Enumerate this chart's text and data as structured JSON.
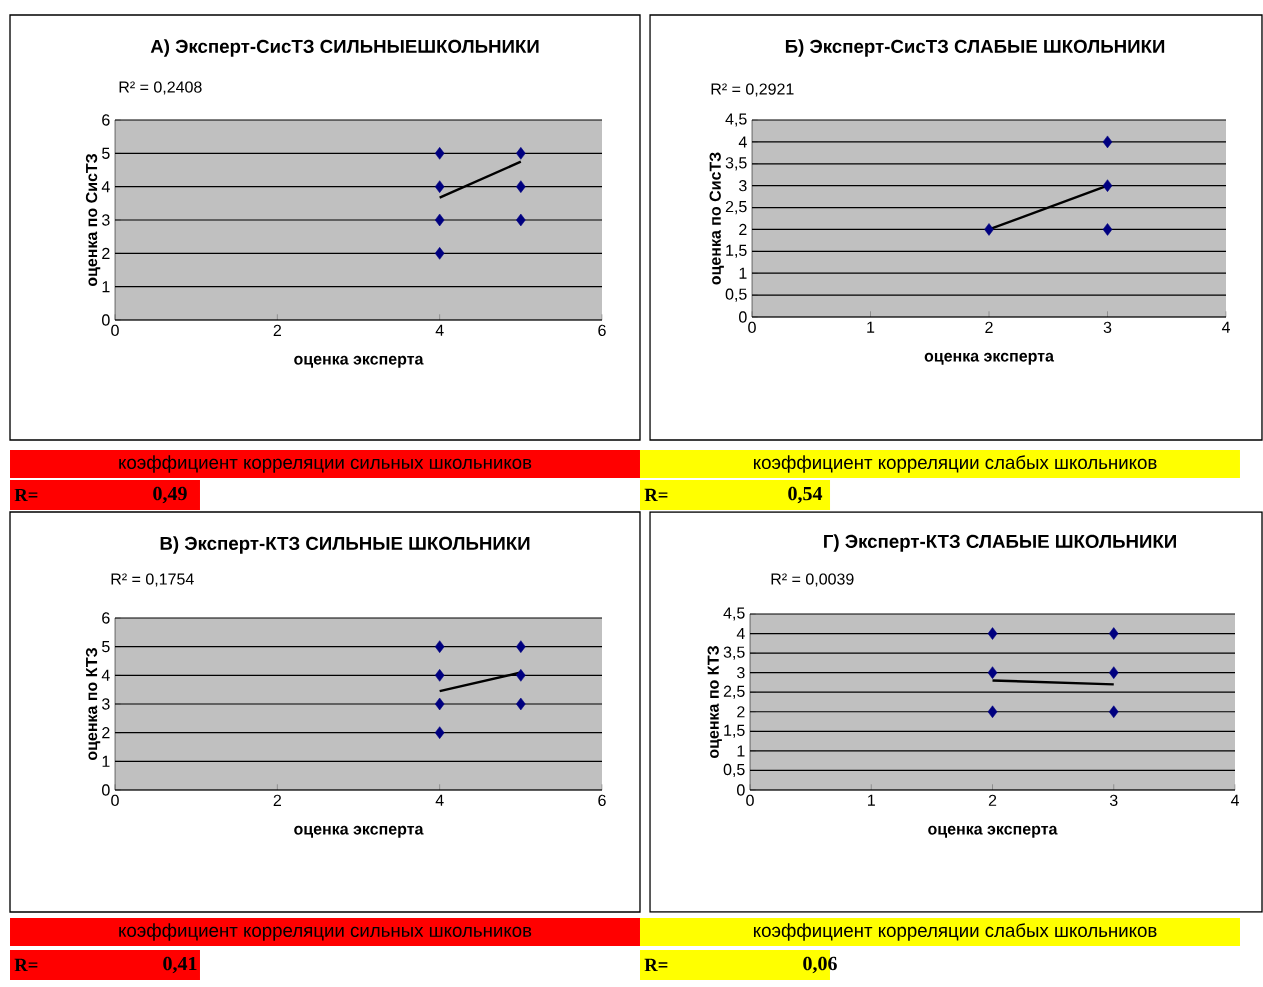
{
  "chart_data": [
    {
      "type": "scatter",
      "title": "А) Эксперт-СисТЗ СИЛЬНЫЕШКОЛЬНИКИ",
      "xlabel": "оценка эксперта",
      "ylabel": "оценка по СисТЗ",
      "xlim": [
        0,
        6
      ],
      "xticks": [
        0,
        2,
        4,
        6
      ],
      "ylim": [
        0,
        6
      ],
      "yticks": [
        0,
        1,
        2,
        3,
        4,
        5,
        6
      ],
      "grid": "y",
      "marker": "diamond",
      "series": [
        {
          "color": "#000080",
          "x": [
            4,
            4,
            4,
            4,
            5,
            5,
            5
          ],
          "values": [
            2,
            3,
            4,
            5,
            3,
            4,
            5
          ]
        },
        {
          "type": "line",
          "color": "#000000",
          "marker": "none",
          "x": [
            4,
            5
          ],
          "values": [
            3.67,
            4.75
          ]
        }
      ],
      "annotations": [
        "R² = 0,2408",
        "коэффициент корреляции сильных школьников",
        "R=",
        "0,49"
      ]
    },
    {
      "type": "scatter",
      "title": "Б) Эксперт-СисТЗ СЛАБЫЕ ШКОЛЬНИКИ",
      "xlabel": "оценка эксперта",
      "ylabel": "оценка по СисТЗ",
      "xlim": [
        0,
        4
      ],
      "xticks": [
        0,
        1,
        2,
        3,
        4
      ],
      "ylim": [
        0,
        4.5
      ],
      "yticks": [
        0,
        {
          "value": 0.5,
          "label": "0,5"
        },
        1,
        {
          "value": 1.5,
          "label": "1,5"
        },
        2,
        {
          "value": 2.5,
          "label": "2,5"
        },
        3,
        {
          "value": 3.5,
          "label": "3,5"
        },
        4,
        {
          "value": 4.5,
          "label": "4,5"
        }
      ],
      "grid": "y",
      "marker": "diamond",
      "series": [
        {
          "color": "#000080",
          "x": [
            2,
            3,
            3,
            3
          ],
          "values": [
            2,
            2,
            3,
            4
          ]
        },
        {
          "type": "line",
          "color": "#000000",
          "marker": "none",
          "x": [
            2,
            3
          ],
          "values": [
            2,
            3
          ]
        }
      ],
      "annotations": [
        "R² = 0,2921",
        "коэффициент корреляции слабых школьников",
        "R=",
        "0,54"
      ]
    },
    {
      "type": "scatter",
      "title": "В) Эксперт-КТЗ СИЛЬНЫЕ ШКОЛЬНИКИ",
      "xlabel": "оценка эксперта",
      "ylabel": "оценка по КТЗ",
      "xlim": [
        0,
        6
      ],
      "xticks": [
        0,
        2,
        4,
        6
      ],
      "ylim": [
        0,
        6
      ],
      "yticks": [
        0,
        1,
        2,
        3,
        4,
        5,
        6
      ],
      "grid": "y",
      "marker": "diamond",
      "series": [
        {
          "color": "#000080",
          "x": [
            4,
            4,
            4,
            4,
            5,
            5,
            5
          ],
          "values": [
            2,
            3,
            4,
            5,
            3,
            4,
            5
          ]
        },
        {
          "type": "line",
          "color": "#000000",
          "marker": "none",
          "x": [
            4,
            5
          ],
          "values": [
            3.45,
            4.1
          ]
        }
      ],
      "annotations": [
        "R² = 0,1754",
        "коэффициент корреляции сильных школьников",
        "R=",
        "0,41"
      ]
    },
    {
      "type": "scatter",
      "title": "Г) Эксперт-КТЗ СЛАБЫЕ ШКОЛЬНИКИ",
      "xlabel": "оценка эксперта",
      "ylabel": "оценка по КТЗ",
      "xlim": [
        0,
        4
      ],
      "xticks": [
        0,
        1,
        2,
        3,
        4
      ],
      "ylim": [
        0,
        4.5
      ],
      "yticks": [
        0,
        {
          "value": 0.5,
          "label": "0,5"
        },
        1,
        {
          "value": 1.5,
          "label": "1,5"
        },
        2,
        {
          "value": 2.5,
          "label": "2,5"
        },
        3,
        {
          "value": 3.5,
          "label": "3,5"
        },
        4,
        {
          "value": 4.5,
          "label": "4,5"
        }
      ],
      "grid": "y",
      "marker": "diamond",
      "series": [
        {
          "color": "#000080",
          "x": [
            2,
            2,
            2,
            3,
            3,
            3
          ],
          "values": [
            2,
            3,
            4,
            2,
            3,
            4
          ]
        },
        {
          "type": "line",
          "color": "#000000",
          "marker": "none",
          "x": [
            2,
            3
          ],
          "values": [
            2.8,
            2.7
          ]
        }
      ],
      "annotations": [
        "R² = 0,0039",
        "коэффициент корреляции слабых школьников",
        "R=",
        "0,06"
      ]
    }
  ]
}
